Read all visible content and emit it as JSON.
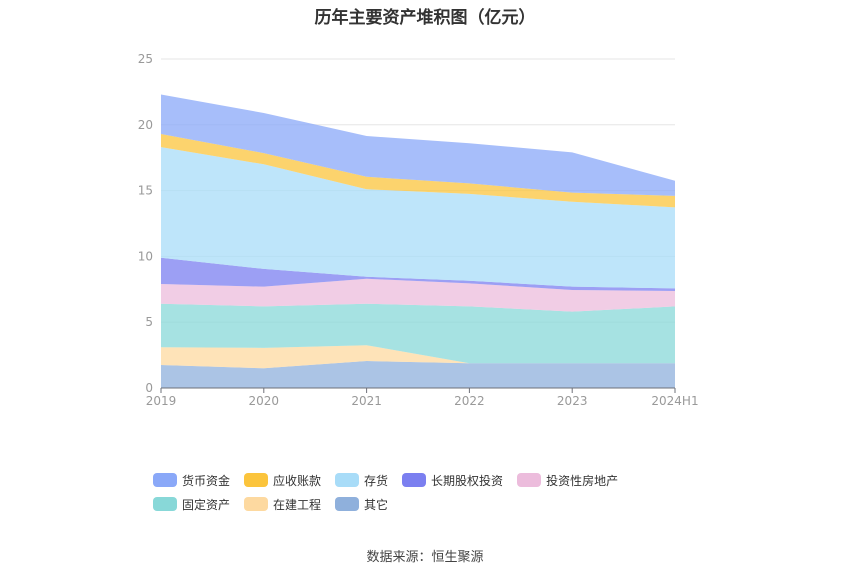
{
  "chart_data": {
    "type": "area",
    "stacked": true,
    "title": "历年主要资产堆积图（亿元）",
    "categories": [
      "2019",
      "2020",
      "2021",
      "2022",
      "2023",
      "2024H1"
    ],
    "ylim": [
      0,
      25
    ],
    "yticks": [
      0,
      5,
      10,
      15,
      20,
      25
    ],
    "grid": true,
    "legend_position": "bottom",
    "series": [
      {
        "name": "其它",
        "color": "#8fb0dc",
        "values": [
          1.75,
          1.5,
          2.05,
          1.88,
          1.88,
          1.88
        ]
      },
      {
        "name": "在建工程",
        "color": "#fdd9a0",
        "values": [
          1.35,
          1.55,
          1.2,
          0,
          0,
          0
        ]
      },
      {
        "name": "固定资产",
        "color": "#88d8d8",
        "values": [
          3.3,
          3.15,
          3.15,
          4.32,
          3.92,
          4.32
        ]
      },
      {
        "name": "投资性房地产",
        "color": "#ecbcdc",
        "values": [
          1.5,
          1.5,
          1.9,
          1.75,
          1.65,
          1.17
        ]
      },
      {
        "name": "长期股权投资",
        "color": "#7b7ff0",
        "values": [
          2.0,
          1.35,
          0.15,
          0.2,
          0.25,
          0.2
        ]
      },
      {
        "name": "存货",
        "color": "#a8dcf8",
        "values": [
          8.4,
          7.95,
          6.65,
          6.6,
          6.45,
          6.16
        ]
      },
      {
        "name": "应收账款",
        "color": "#fbc43c",
        "values": [
          1.0,
          0.85,
          0.95,
          0.8,
          0.7,
          0.87
        ]
      },
      {
        "name": "货币资金",
        "color": "#8aa8f8",
        "values": [
          3.0,
          3.05,
          3.1,
          3.05,
          3.05,
          1.15
        ]
      }
    ],
    "legend_order": [
      "货币资金",
      "应收账款",
      "存货",
      "长期股权投资",
      "投资性房地产",
      "固定资产",
      "在建工程",
      "其它"
    ]
  },
  "source": "数据来源：恒生聚源"
}
